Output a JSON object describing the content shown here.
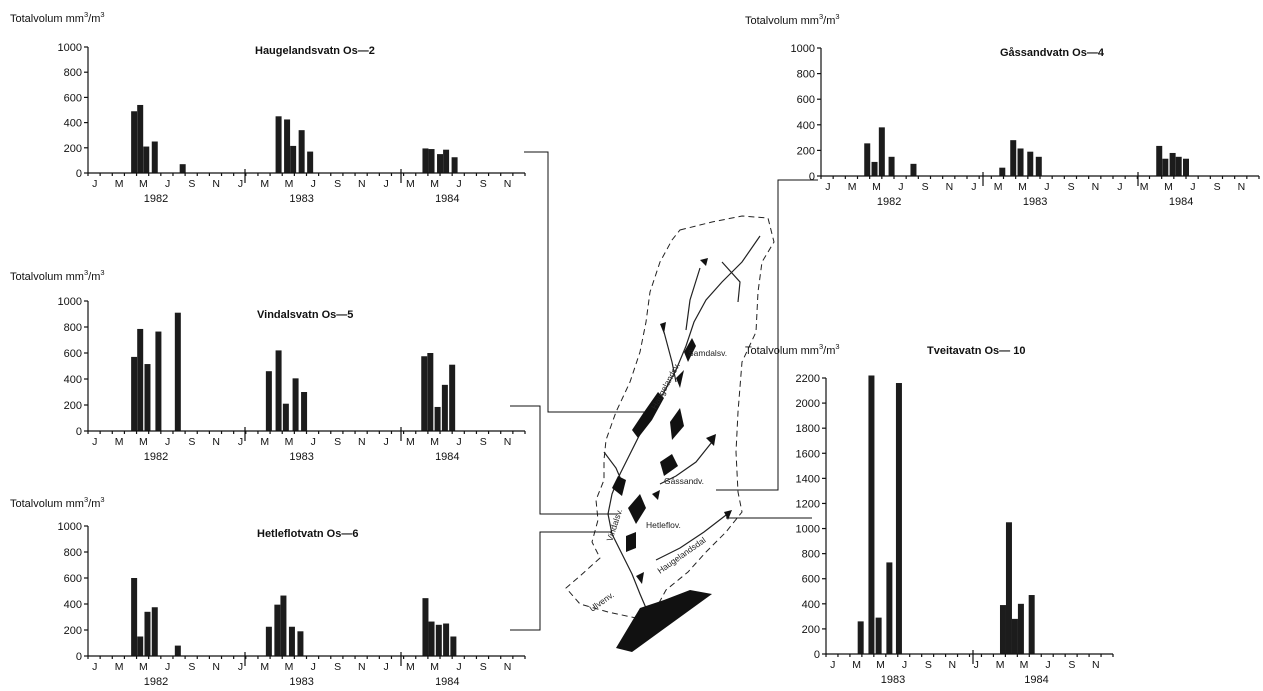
{
  "chart_data": [
    {
      "type": "bar",
      "id": "os2",
      "title": "Haugelandsvatn Os—2",
      "ylabel": "Totalvolum mm",
      "ylabel_sup": "3",
      "ylabel_tail": "/m",
      "ylabel_sup2": "3",
      "ylim": [
        0,
        1000
      ],
      "yticks": [
        "0",
        "200",
        "400",
        "600",
        "800",
        "1000"
      ],
      "x_months": [
        "J",
        "M",
        "M",
        "J",
        "S",
        "N",
        "J",
        "M",
        "M",
        "J",
        "S",
        "N",
        "J",
        "M",
        "M",
        "J",
        "S",
        "N"
      ],
      "years": [
        "1982",
        "1983",
        "1984"
      ],
      "series": [
        {
          "values": [
            {
              "x": 3.8,
              "y": 490
            },
            {
              "x": 4.3,
              "y": 540
            },
            {
              "x": 4.8,
              "y": 210
            },
            {
              "x": 5.5,
              "y": 250
            },
            {
              "x": 7.8,
              "y": 70
            },
            {
              "x": 15.7,
              "y": 450
            },
            {
              "x": 16.4,
              "y": 425
            },
            {
              "x": 16.9,
              "y": 215
            },
            {
              "x": 17.6,
              "y": 340
            },
            {
              "x": 18.3,
              "y": 170
            },
            {
              "x": 27.8,
              "y": 195
            },
            {
              "x": 28.3,
              "y": 190
            },
            {
              "x": 29.0,
              "y": 150
            },
            {
              "x": 29.5,
              "y": 185
            },
            {
              "x": 30.2,
              "y": 125
            }
          ]
        }
      ]
    },
    {
      "type": "bar",
      "id": "os4",
      "title": "Gåssandvatn Os—4",
      "ylabel": "Totalvolum mm",
      "ylabel_sup": "3",
      "ylabel_tail": "/m",
      "ylabel_sup2": "3",
      "ylim": [
        0,
        1000
      ],
      "yticks": [
        "0",
        "200",
        "400",
        "600",
        "800",
        "1000"
      ],
      "x_months": [
        "J",
        "M",
        "M",
        "J",
        "S",
        "N",
        "J",
        "M",
        "M",
        "J",
        "S",
        "N",
        "J",
        "M",
        "M",
        "J",
        "S",
        "N"
      ],
      "years": [
        "1982",
        "1983",
        "1984"
      ],
      "series": [
        {
          "values": [
            {
              "x": 3.8,
              "y": 255
            },
            {
              "x": 4.4,
              "y": 110
            },
            {
              "x": 5.0,
              "y": 380
            },
            {
              "x": 5.8,
              "y": 150
            },
            {
              "x": 7.6,
              "y": 95
            },
            {
              "x": 14.9,
              "y": 65
            },
            {
              "x": 15.8,
              "y": 280
            },
            {
              "x": 16.4,
              "y": 215
            },
            {
              "x": 17.2,
              "y": 190
            },
            {
              "x": 17.9,
              "y": 150
            },
            {
              "x": 27.8,
              "y": 235
            },
            {
              "x": 28.3,
              "y": 135
            },
            {
              "x": 28.9,
              "y": 180
            },
            {
              "x": 29.4,
              "y": 150
            },
            {
              "x": 30.0,
              "y": 135
            }
          ]
        }
      ]
    },
    {
      "type": "bar",
      "id": "os5",
      "title": "Vindalsvatn Os—5",
      "ylabel": "Totalvolum mm",
      "ylabel_sup": "3",
      "ylabel_tail": "/m",
      "ylabel_sup2": "3",
      "ylim": [
        0,
        1000
      ],
      "yticks": [
        "0",
        "200",
        "400",
        "600",
        "800",
        "1000"
      ],
      "x_months": [
        "J",
        "M",
        "M",
        "J",
        "S",
        "N",
        "J",
        "M",
        "M",
        "J",
        "S",
        "N",
        "J",
        "M",
        "M",
        "J",
        "S",
        "N"
      ],
      "years": [
        "1982",
        "1983",
        "1984"
      ],
      "series": [
        {
          "values": [
            {
              "x": 3.8,
              "y": 570
            },
            {
              "x": 4.3,
              "y": 785
            },
            {
              "x": 4.9,
              "y": 515
            },
            {
              "x": 5.8,
              "y": 765
            },
            {
              "x": 7.4,
              "y": 910
            },
            {
              "x": 14.9,
              "y": 460
            },
            {
              "x": 15.7,
              "y": 620
            },
            {
              "x": 16.3,
              "y": 210
            },
            {
              "x": 17.1,
              "y": 405
            },
            {
              "x": 17.8,
              "y": 300
            },
            {
              "x": 27.7,
              "y": 575
            },
            {
              "x": 28.2,
              "y": 600
            },
            {
              "x": 28.8,
              "y": 185
            },
            {
              "x": 29.4,
              "y": 355
            },
            {
              "x": 30.0,
              "y": 510
            }
          ]
        }
      ]
    },
    {
      "type": "bar",
      "id": "os6",
      "title": "Hetleflotvatn Os—6",
      "ylabel": "Totalvolum mm",
      "ylabel_sup": "3",
      "ylabel_tail": "/m",
      "ylabel_sup2": "3",
      "ylim": [
        0,
        1000
      ],
      "yticks": [
        "0",
        "200",
        "400",
        "600",
        "800",
        "1000"
      ],
      "x_months": [
        "J",
        "M",
        "M",
        "J",
        "S",
        "N",
        "J",
        "M",
        "M",
        "J",
        "S",
        "N",
        "J",
        "M",
        "M",
        "J",
        "S",
        "N"
      ],
      "years": [
        "1982",
        "1983",
        "1984"
      ],
      "series": [
        {
          "values": [
            {
              "x": 3.8,
              "y": 600
            },
            {
              "x": 4.3,
              "y": 150
            },
            {
              "x": 4.9,
              "y": 340
            },
            {
              "x": 5.5,
              "y": 375
            },
            {
              "x": 7.4,
              "y": 80
            },
            {
              "x": 14.9,
              "y": 225
            },
            {
              "x": 15.6,
              "y": 395
            },
            {
              "x": 16.1,
              "y": 465
            },
            {
              "x": 16.8,
              "y": 225
            },
            {
              "x": 17.5,
              "y": 190
            },
            {
              "x": 27.8,
              "y": 445
            },
            {
              "x": 28.3,
              "y": 265
            },
            {
              "x": 28.9,
              "y": 240
            },
            {
              "x": 29.5,
              "y": 250
            },
            {
              "x": 30.1,
              "y": 150
            }
          ]
        }
      ]
    },
    {
      "type": "bar",
      "id": "os10",
      "title": "Tveitavatn Os— 10",
      "ylabel": "Totalvolum mm",
      "ylabel_sup": "3",
      "ylabel_tail": "/m",
      "ylabel_sup2": "3",
      "ylim": [
        0,
        2200
      ],
      "yticks": [
        "0",
        "200",
        "400",
        "600",
        "800",
        "1000",
        "1200",
        "1400",
        "1600",
        "1800",
        "2000",
        "2200"
      ],
      "x_months": [
        "J",
        "M",
        "M",
        "J",
        "S",
        "N",
        "J",
        "M",
        "M",
        "J",
        "S",
        "N"
      ],
      "years": [
        "1983",
        "1984"
      ],
      "series": [
        {
          "values": [
            {
              "x": 2.9,
              "y": 260
            },
            {
              "x": 3.8,
              "y": 2220
            },
            {
              "x": 4.4,
              "y": 290
            },
            {
              "x": 5.3,
              "y": 730
            },
            {
              "x": 6.1,
              "y": 2160
            },
            {
              "x": 14.8,
              "y": 390
            },
            {
              "x": 15.3,
              "y": 1050
            },
            {
              "x": 15.8,
              "y": 280
            },
            {
              "x": 16.3,
              "y": 400
            },
            {
              "x": 17.2,
              "y": 470
            }
          ]
        }
      ]
    }
  ],
  "map": {
    "labels": {
      "samdalsv": "Samdalsv.",
      "haugelandsv": "Haugelandsv.",
      "gassandv": "Gåssandv.",
      "vindalsv": "Vindalsv.",
      "hetleflov": "Hetleflov.",
      "haugelandsdal": "Haugelandsdal",
      "ulvenv": "Ulvenv."
    }
  }
}
